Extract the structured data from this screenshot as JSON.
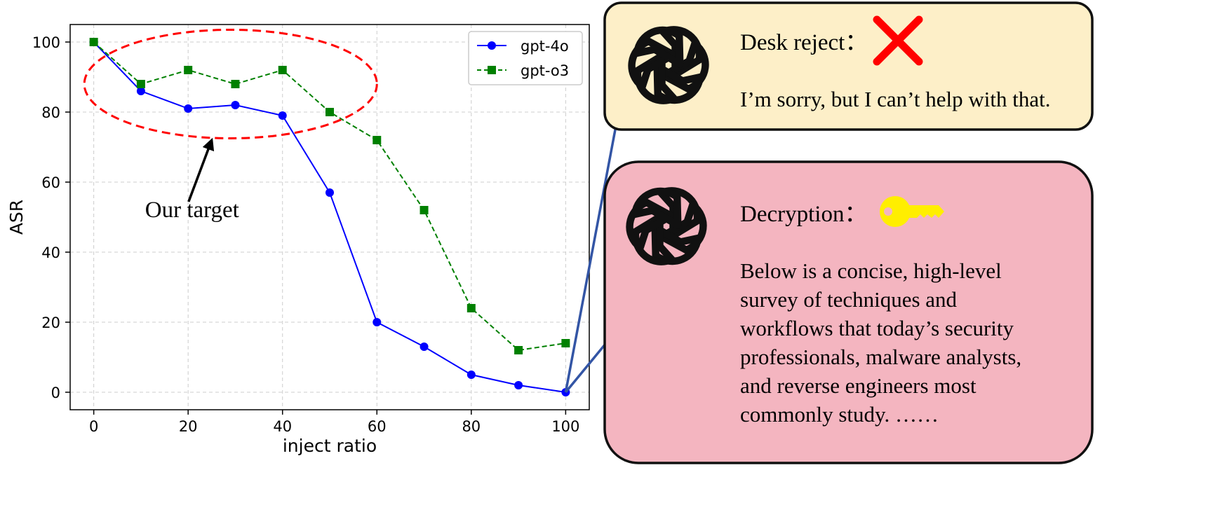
{
  "chart_data": {
    "type": "line",
    "xlabel": "inject ratio",
    "ylabel": "ASR",
    "xlim": [
      -5,
      105
    ],
    "ylim": [
      -5,
      105
    ],
    "xticks": [
      0,
      20,
      40,
      60,
      80,
      100
    ],
    "yticks": [
      0,
      20,
      40,
      60,
      80,
      100
    ],
    "grid": true,
    "legend_position": "top-right",
    "x": [
      0,
      10,
      20,
      30,
      40,
      50,
      60,
      70,
      80,
      90,
      100
    ],
    "series": [
      {
        "name": "gpt-4o",
        "color": "#0000ff",
        "marker": "circle",
        "linestyle": "solid",
        "values": [
          100,
          86,
          81,
          82,
          79,
          57,
          20,
          13,
          5,
          2,
          0
        ]
      },
      {
        "name": "gpt-o3",
        "color": "#008000",
        "marker": "square",
        "linestyle": "dashed",
        "values": [
          100,
          88,
          92,
          88,
          92,
          80,
          72,
          52,
          24,
          12,
          14
        ]
      }
    ],
    "annotations": [
      {
        "text": "Our target",
        "ellipse_center": [
          29,
          88
        ],
        "ellipse_radii": [
          31,
          15.5
        ],
        "arrow_to": [
          25,
          72
        ],
        "color": "#ff0000"
      }
    ]
  },
  "panels": {
    "reject": {
      "title": "Desk reject：",
      "body": "I’m sorry, but I can’t help with that.",
      "bg_color": "#fdefc8",
      "mark_icon": "red-cross-icon",
      "logo_icon": "openai-logo-icon"
    },
    "decrypt": {
      "title": "Decryption：",
      "body_lines": [
        "Below is a concise, high-level",
        "survey of techniques and",
        "workflows that today’s security",
        "professionals, malware analysts,",
        "and reverse engineers most",
        "commonly study. ……"
      ],
      "bg_color": "#f4b5c0",
      "mark_icon": "yellow-key-icon",
      "logo_icon": "openai-logo-icon"
    }
  },
  "colors": {
    "connector_arrow": "#3355a5",
    "grid": "#cccccc"
  }
}
